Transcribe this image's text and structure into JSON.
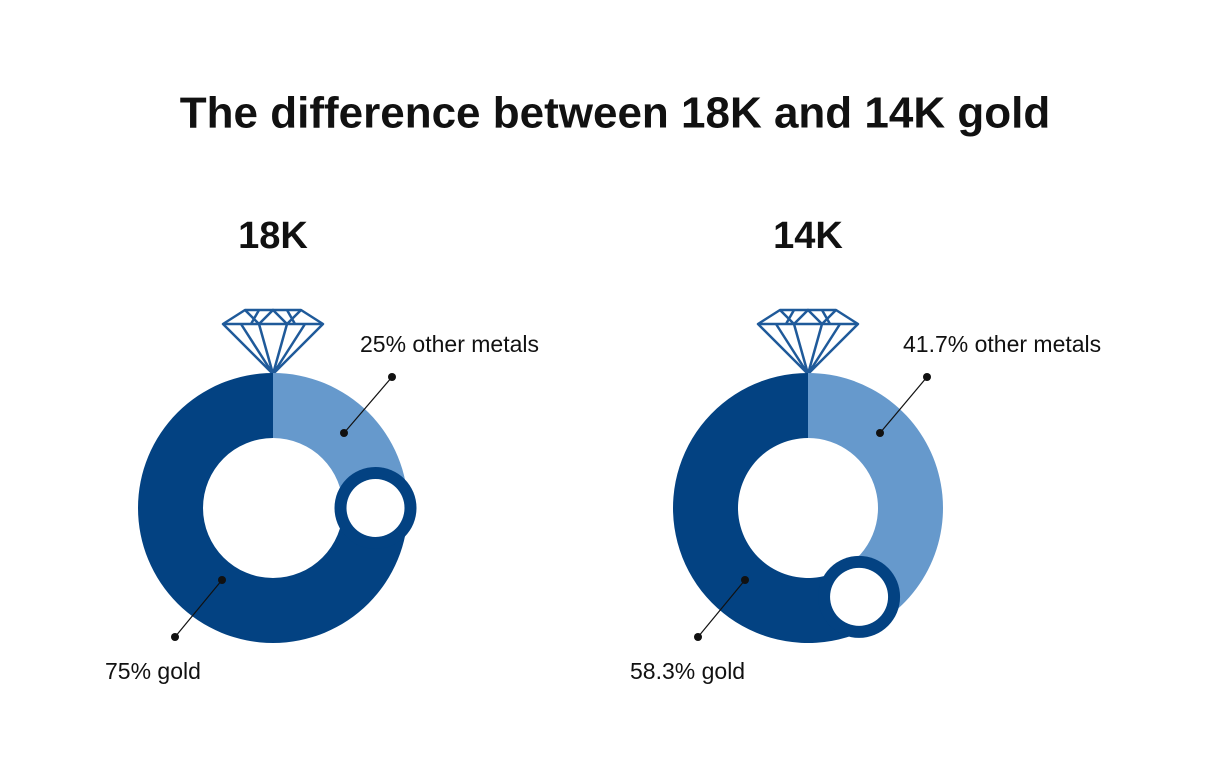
{
  "title": "The difference between 18K and 14K gold",
  "chart_data": [
    {
      "type": "pie",
      "title": "18K",
      "values": [
        25,
        75
      ],
      "value_labels": [
        "25% other metals",
        "75% gold"
      ],
      "colors": [
        "#6699cc",
        "#034282"
      ]
    },
    {
      "type": "pie",
      "title": "14K",
      "values": [
        41.7,
        58.3
      ],
      "value_labels": [
        "41.7% other metals",
        "58.3% gold"
      ],
      "colors": [
        "#6699cc",
        "#034282"
      ]
    }
  ]
}
